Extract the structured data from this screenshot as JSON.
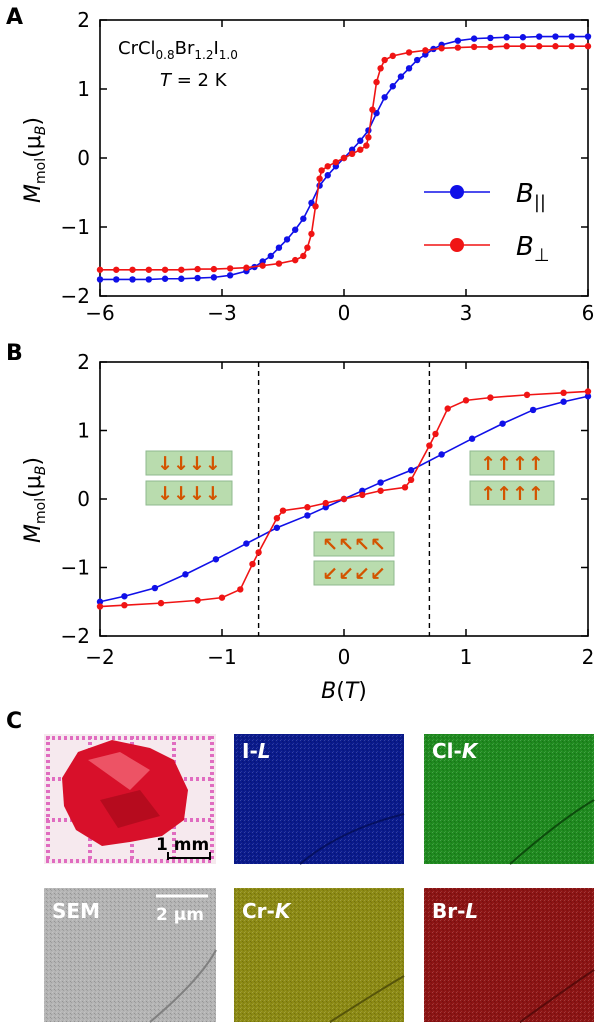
{
  "panels": {
    "a": "A",
    "b": "B",
    "c": "C"
  },
  "chart_data": [
    {
      "type": "line",
      "panel": "A",
      "annotation_line1": "CrCl0.8Br1.2I1.0",
      "annotation_formula": [
        {
          "t": "CrCl",
          "sub": false
        },
        {
          "t": "0.8",
          "sub": true
        },
        {
          "t": "Br",
          "sub": false
        },
        {
          "t": "1.2",
          "sub": true
        },
        {
          "t": "I",
          "sub": false
        },
        {
          "t": "1.0",
          "sub": true
        }
      ],
      "annotation_line2": "T = 2 K",
      "ylabel": "M_mol(μ_B)",
      "xlabel": "",
      "xlim": [
        -6,
        6
      ],
      "ylim": [
        -2,
        2
      ],
      "xticks": [
        "−6",
        "−3",
        "0",
        "3",
        "6"
      ],
      "yticks": [
        "−2",
        "−1",
        "0",
        "1",
        "2"
      ],
      "legend_position": "right",
      "series": [
        {
          "name": "B||",
          "color": "#1010e8",
          "points": [
            [
              -6,
              -1.76
            ],
            [
              -5.6,
              -1.76
            ],
            [
              -5.2,
              -1.76
            ],
            [
              -4.8,
              -1.76
            ],
            [
              -4.4,
              -1.75
            ],
            [
              -4.0,
              -1.75
            ],
            [
              -3.6,
              -1.74
            ],
            [
              -3.2,
              -1.73
            ],
            [
              -2.8,
              -1.7
            ],
            [
              -2.4,
              -1.64
            ],
            [
              -2.2,
              -1.58
            ],
            [
              -2.0,
              -1.5
            ],
            [
              -1.8,
              -1.42
            ],
            [
              -1.6,
              -1.3
            ],
            [
              -1.4,
              -1.18
            ],
            [
              -1.2,
              -1.04
            ],
            [
              -1.0,
              -0.88
            ],
            [
              -0.8,
              -0.65
            ],
            [
              -0.6,
              -0.4
            ],
            [
              -0.4,
              -0.25
            ],
            [
              -0.2,
              -0.12
            ],
            [
              0,
              0
            ],
            [
              0.2,
              0.12
            ],
            [
              0.4,
              0.25
            ],
            [
              0.6,
              0.4
            ],
            [
              0.8,
              0.65
            ],
            [
              1.0,
              0.88
            ],
            [
              1.2,
              1.04
            ],
            [
              1.4,
              1.18
            ],
            [
              1.6,
              1.3
            ],
            [
              1.8,
              1.42
            ],
            [
              2.0,
              1.5
            ],
            [
              2.2,
              1.58
            ],
            [
              2.4,
              1.64
            ],
            [
              2.8,
              1.7
            ],
            [
              3.2,
              1.73
            ],
            [
              3.6,
              1.74
            ],
            [
              4.0,
              1.75
            ],
            [
              4.4,
              1.75
            ],
            [
              4.8,
              1.76
            ],
            [
              5.2,
              1.76
            ],
            [
              5.6,
              1.76
            ],
            [
              6,
              1.76
            ]
          ]
        },
        {
          "name": "B⊥",
          "color": "#f01414",
          "points": [
            [
              -6,
              -1.62
            ],
            [
              -5.6,
              -1.62
            ],
            [
              -5.2,
              -1.62
            ],
            [
              -4.8,
              -1.62
            ],
            [
              -4.4,
              -1.62
            ],
            [
              -4.0,
              -1.62
            ],
            [
              -3.6,
              -1.61
            ],
            [
              -3.2,
              -1.61
            ],
            [
              -2.8,
              -1.6
            ],
            [
              -2.4,
              -1.59
            ],
            [
              -2.0,
              -1.56
            ],
            [
              -1.6,
              -1.53
            ],
            [
              -1.2,
              -1.48
            ],
            [
              -1.0,
              -1.42
            ],
            [
              -0.9,
              -1.3
            ],
            [
              -0.8,
              -1.1
            ],
            [
              -0.7,
              -0.7
            ],
            [
              -0.6,
              -0.3
            ],
            [
              -0.55,
              -0.18
            ],
            [
              -0.4,
              -0.12
            ],
            [
              -0.2,
              -0.06
            ],
            [
              0,
              0
            ],
            [
              0.2,
              0.06
            ],
            [
              0.4,
              0.12
            ],
            [
              0.55,
              0.18
            ],
            [
              0.6,
              0.3
            ],
            [
              0.7,
              0.7
            ],
            [
              0.8,
              1.1
            ],
            [
              0.9,
              1.3
            ],
            [
              1.0,
              1.42
            ],
            [
              1.2,
              1.48
            ],
            [
              1.6,
              1.53
            ],
            [
              2.0,
              1.56
            ],
            [
              2.4,
              1.59
            ],
            [
              2.8,
              1.6
            ],
            [
              3.2,
              1.61
            ],
            [
              3.6,
              1.61
            ],
            [
              4.0,
              1.62
            ],
            [
              4.4,
              1.62
            ],
            [
              4.8,
              1.62
            ],
            [
              5.2,
              1.62
            ],
            [
              5.6,
              1.62
            ],
            [
              6,
              1.62
            ]
          ]
        }
      ]
    },
    {
      "type": "line",
      "panel": "B",
      "ylabel": "M_mol(μ_B)",
      "xlabel": "B(T)",
      "xlim": [
        -2,
        2
      ],
      "ylim": [
        -2,
        2
      ],
      "xticks": [
        "−2",
        "−1",
        "0",
        "1",
        "2"
      ],
      "yticks": [
        "−2",
        "−1",
        "0",
        "1",
        "2"
      ],
      "dashed_lines_x": [
        -0.7,
        0.7
      ],
      "spin_states": [
        "↓↓↓↓ / ↓↓↓↓",
        "↖↖↖↖ / ↙↙↙↙",
        "↑↑↑↑ / ↑↑↑↑"
      ],
      "series": [
        {
          "name": "B||",
          "color": "#1010e8",
          "points": [
            [
              -2,
              -1.5
            ],
            [
              -1.8,
              -1.42
            ],
            [
              -1.55,
              -1.3
            ],
            [
              -1.3,
              -1.1
            ],
            [
              -1.05,
              -0.88
            ],
            [
              -0.8,
              -0.65
            ],
            [
              -0.55,
              -0.42
            ],
            [
              -0.3,
              -0.24
            ],
            [
              -0.15,
              -0.12
            ],
            [
              0,
              0
            ],
            [
              0.15,
              0.12
            ],
            [
              0.3,
              0.24
            ],
            [
              0.55,
              0.42
            ],
            [
              0.8,
              0.65
            ],
            [
              1.05,
              0.88
            ],
            [
              1.3,
              1.1
            ],
            [
              1.55,
              1.3
            ],
            [
              1.8,
              1.42
            ],
            [
              2,
              1.5
            ]
          ]
        },
        {
          "name": "B⊥",
          "color": "#f01414",
          "points": [
            [
              -2,
              -1.57
            ],
            [
              -1.8,
              -1.55
            ],
            [
              -1.5,
              -1.52
            ],
            [
              -1.2,
              -1.48
            ],
            [
              -1.0,
              -1.44
            ],
            [
              -0.85,
              -1.32
            ],
            [
              -0.75,
              -0.95
            ],
            [
              -0.7,
              -0.78
            ],
            [
              -0.55,
              -0.28
            ],
            [
              -0.5,
              -0.17
            ],
            [
              -0.3,
              -0.12
            ],
            [
              -0.15,
              -0.06
            ],
            [
              0,
              0
            ],
            [
              0.15,
              0.06
            ],
            [
              0.3,
              0.12
            ],
            [
              0.5,
              0.17
            ],
            [
              0.55,
              0.28
            ],
            [
              0.7,
              0.78
            ],
            [
              0.75,
              0.95
            ],
            [
              0.85,
              1.32
            ],
            [
              1.0,
              1.44
            ],
            [
              1.2,
              1.48
            ],
            [
              1.5,
              1.52
            ],
            [
              1.8,
              1.55
            ],
            [
              2,
              1.57
            ]
          ]
        }
      ]
    }
  ],
  "images": {
    "crystal_photo": {
      "scale_label": "1 mm"
    },
    "maps": [
      {
        "label": "I-L",
        "color": "#0a1a8c"
      },
      {
        "label": "Cl-K",
        "color": "#1f8a1f"
      },
      {
        "label": "SEM",
        "color": "#b4b4b4",
        "scale_label": "2 μm"
      },
      {
        "label": "Cr-K",
        "color": "#8c8a14"
      },
      {
        "label": "Br-L",
        "color": "#8c1414"
      }
    ]
  }
}
